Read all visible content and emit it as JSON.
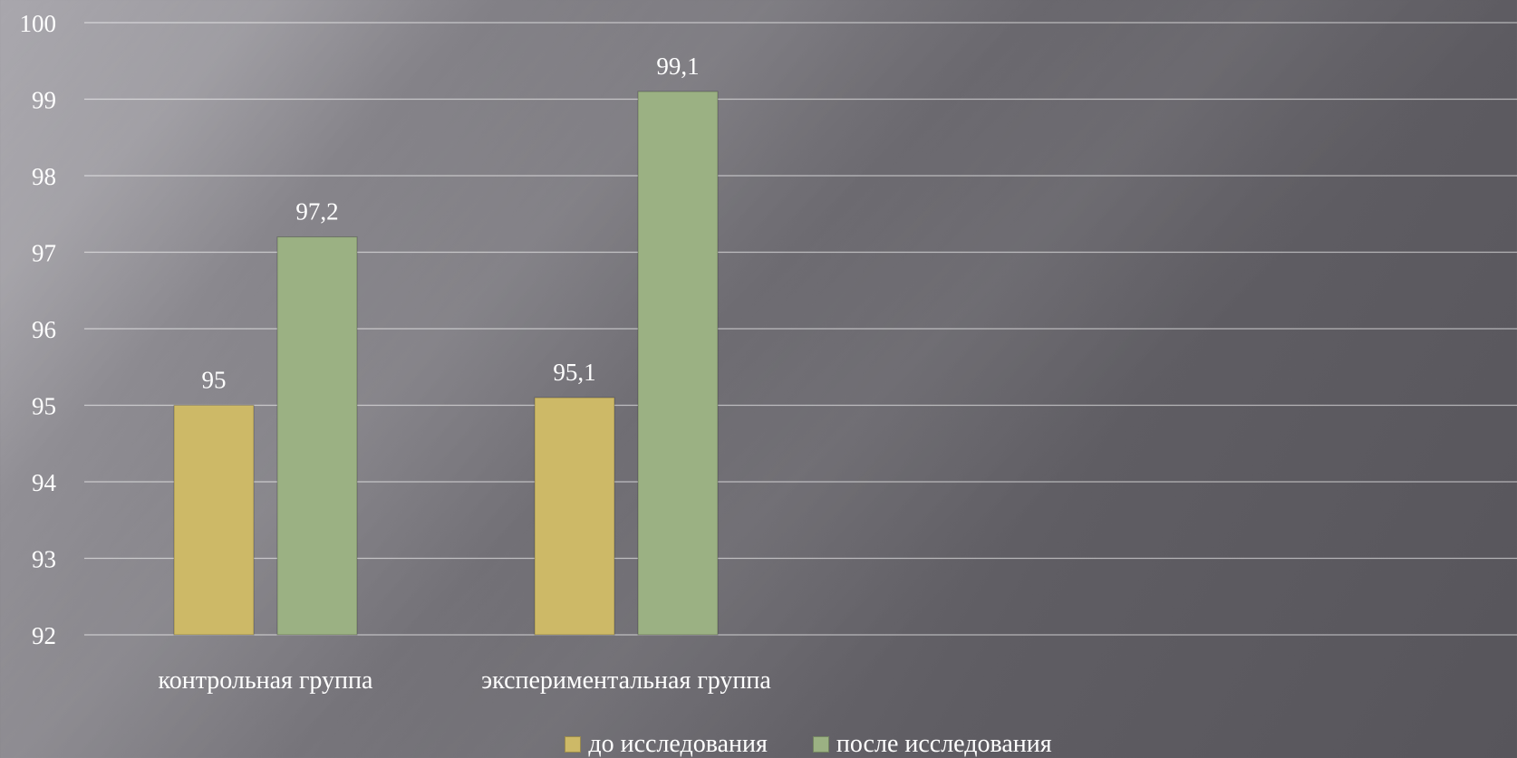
{
  "chart_data": {
    "type": "bar",
    "title": "",
    "xlabel": "",
    "ylabel": "",
    "categories": [
      "контрольная группа",
      "экспериментальная группа"
    ],
    "series": [
      {
        "name": "до исследования",
        "values": [
          95,
          95.1
        ],
        "labels": [
          "95",
          "95,1"
        ],
        "color": "#cdb967"
      },
      {
        "name": "после исследования",
        "values": [
          97.2,
          99.1
        ],
        "labels": [
          "97,2",
          "99,1"
        ],
        "color": "#9bb183"
      }
    ],
    "ylim": [
      92,
      100
    ],
    "yticks": [
      92,
      93,
      94,
      95,
      96,
      97,
      98,
      99,
      100
    ],
    "grid": true,
    "legend_position": "bottom"
  }
}
